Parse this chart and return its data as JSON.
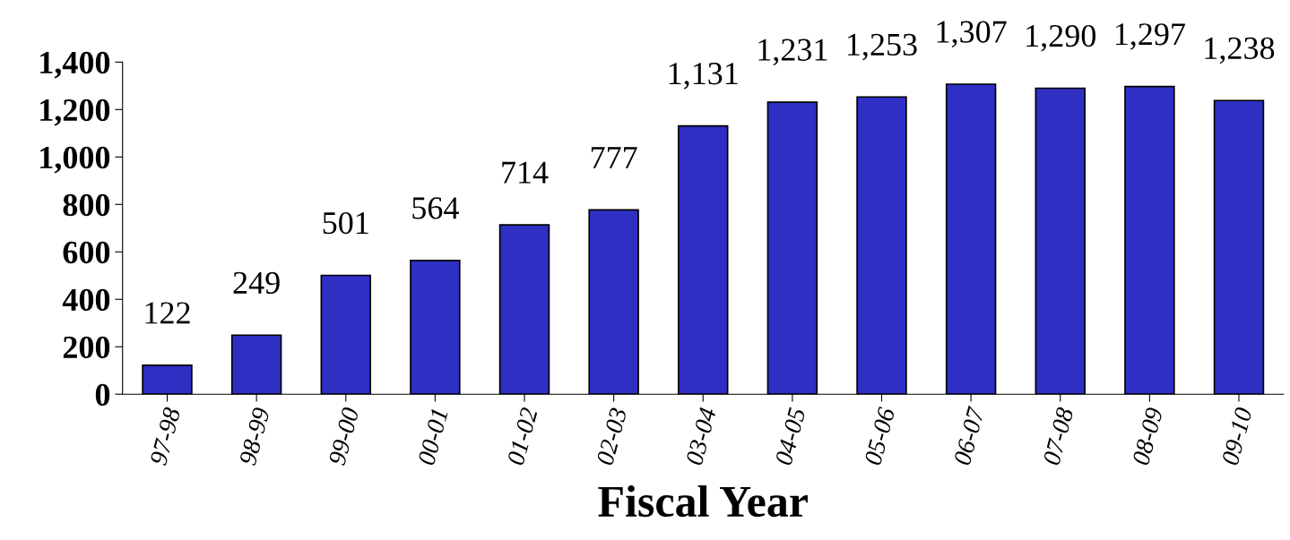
{
  "chart_data": {
    "type": "bar",
    "xlabel": "Fiscal Year",
    "categories": [
      "97-98",
      "98-99",
      "99-00",
      "00-01",
      "01-02",
      "02-03",
      "03-04",
      "04-05",
      "05-06",
      "06-07",
      "07-08",
      "08-09",
      "09-10"
    ],
    "values": [
      122,
      249,
      501,
      564,
      714,
      777,
      1131,
      1231,
      1253,
      1307,
      1290,
      1297,
      1238
    ],
    "value_labels": [
      "122",
      "249",
      "501",
      "564",
      "714",
      "777",
      "1,131",
      "1,231",
      "1,253",
      "1,307",
      "1,290",
      "1,297",
      "1,238"
    ],
    "color": "#2f2fc4",
    "ylim": [
      0,
      1400
    ],
    "yticks": [
      0,
      200,
      400,
      600,
      800,
      {
        "value": 1000,
        "label": "1,000"
      },
      {
        "value": 1200,
        "label": "1,200"
      },
      {
        "value": 1400,
        "label": "1,400"
      }
    ],
    "grid": false,
    "legend": false
  }
}
